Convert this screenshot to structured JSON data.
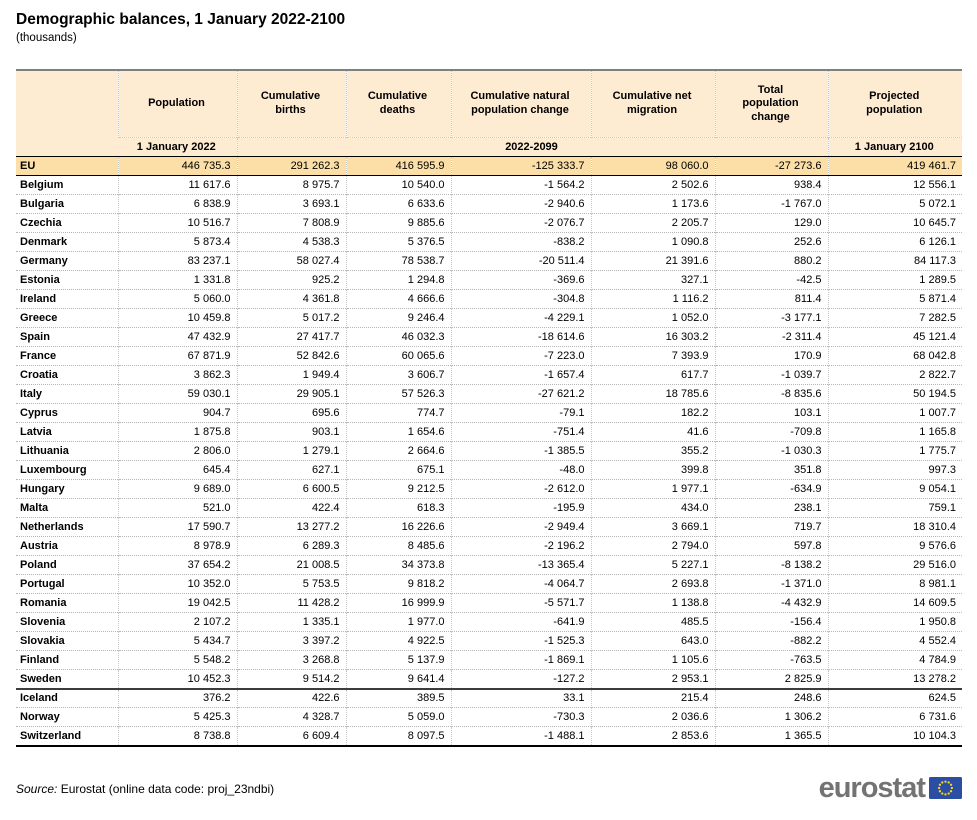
{
  "page": {
    "title": "Demographic balances, 1 January 2022-2100",
    "subtitle": "(thousands)"
  },
  "chart_data": {
    "type": "table",
    "title": "Demographic balances, 1 January 2022-2100",
    "unit": "(thousands)",
    "columns": [
      "",
      "Population",
      "Cumulative births",
      "Cumulative deaths",
      "Cumulative natural population change",
      "Cumulative net migration",
      "Total population change",
      "Projected population"
    ],
    "period_labels": {
      "population": "1 January 2022",
      "middle": "2022-2099",
      "projected": "1 January 2100"
    },
    "rows": [
      {
        "name": "EU",
        "group": "eu",
        "values": [
          "446 735.3",
          "291 262.3",
          "416 595.9",
          "-125 333.7",
          "98 060.0",
          "-27 273.6",
          "419 461.7"
        ]
      },
      {
        "name": "Belgium",
        "group": "member",
        "values": [
          "11 617.6",
          "8 975.7",
          "10 540.0",
          "-1 564.2",
          "2 502.6",
          "938.4",
          "12 556.1"
        ]
      },
      {
        "name": "Bulgaria",
        "group": "member",
        "values": [
          "6 838.9",
          "3 693.1",
          "6 633.6",
          "-2 940.6",
          "1 173.6",
          "-1 767.0",
          "5 072.1"
        ]
      },
      {
        "name": "Czechia",
        "group": "member",
        "values": [
          "10 516.7",
          "7 808.9",
          "9 885.6",
          "-2 076.7",
          "2 205.7",
          "129.0",
          "10 645.7"
        ]
      },
      {
        "name": "Denmark",
        "group": "member",
        "values": [
          "5 873.4",
          "4 538.3",
          "5 376.5",
          "-838.2",
          "1 090.8",
          "252.6",
          "6 126.1"
        ]
      },
      {
        "name": "Germany",
        "group": "member",
        "values": [
          "83 237.1",
          "58 027.4",
          "78 538.7",
          "-20 511.4",
          "21 391.6",
          "880.2",
          "84 117.3"
        ]
      },
      {
        "name": "Estonia",
        "group": "member",
        "values": [
          "1 331.8",
          "925.2",
          "1 294.8",
          "-369.6",
          "327.1",
          "-42.5",
          "1 289.5"
        ]
      },
      {
        "name": "Ireland",
        "group": "member",
        "values": [
          "5 060.0",
          "4 361.8",
          "4 666.6",
          "-304.8",
          "1 116.2",
          "811.4",
          "5 871.4"
        ]
      },
      {
        "name": "Greece",
        "group": "member",
        "values": [
          "10 459.8",
          "5 017.2",
          "9 246.4",
          "-4 229.1",
          "1 052.0",
          "-3 177.1",
          "7 282.5"
        ]
      },
      {
        "name": "Spain",
        "group": "member",
        "values": [
          "47 432.9",
          "27 417.7",
          "46 032.3",
          "-18 614.6",
          "16 303.2",
          "-2 311.4",
          "45 121.4"
        ]
      },
      {
        "name": "France",
        "group": "member",
        "values": [
          "67 871.9",
          "52 842.6",
          "60 065.6",
          "-7 223.0",
          "7 393.9",
          "170.9",
          "68 042.8"
        ]
      },
      {
        "name": "Croatia",
        "group": "member",
        "values": [
          "3 862.3",
          "1 949.4",
          "3 606.7",
          "-1 657.4",
          "617.7",
          "-1 039.7",
          "2 822.7"
        ]
      },
      {
        "name": "Italy",
        "group": "member",
        "values": [
          "59 030.1",
          "29 905.1",
          "57 526.3",
          "-27 621.2",
          "18 785.6",
          "-8 835.6",
          "50 194.5"
        ]
      },
      {
        "name": "Cyprus",
        "group": "member",
        "values": [
          "904.7",
          "695.6",
          "774.7",
          "-79.1",
          "182.2",
          "103.1",
          "1 007.7"
        ]
      },
      {
        "name": "Latvia",
        "group": "member",
        "values": [
          "1 875.8",
          "903.1",
          "1 654.6",
          "-751.4",
          "41.6",
          "-709.8",
          "1 165.8"
        ]
      },
      {
        "name": "Lithuania",
        "group": "member",
        "values": [
          "2 806.0",
          "1 279.1",
          "2 664.6",
          "-1 385.5",
          "355.2",
          "-1 030.3",
          "1 775.7"
        ]
      },
      {
        "name": "Luxembourg",
        "group": "member",
        "values": [
          "645.4",
          "627.1",
          "675.1",
          "-48.0",
          "399.8",
          "351.8",
          "997.3"
        ]
      },
      {
        "name": "Hungary",
        "group": "member",
        "values": [
          "9 689.0",
          "6 600.5",
          "9 212.5",
          "-2 612.0",
          "1 977.1",
          "-634.9",
          "9 054.1"
        ]
      },
      {
        "name": "Malta",
        "group": "member",
        "values": [
          "521.0",
          "422.4",
          "618.3",
          "-195.9",
          "434.0",
          "238.1",
          "759.1"
        ]
      },
      {
        "name": "Netherlands",
        "group": "member",
        "values": [
          "17 590.7",
          "13 277.2",
          "16 226.6",
          "-2 949.4",
          "3 669.1",
          "719.7",
          "18 310.4"
        ]
      },
      {
        "name": "Austria",
        "group": "member",
        "values": [
          "8 978.9",
          "6 289.3",
          "8 485.6",
          "-2 196.2",
          "2 794.0",
          "597.8",
          "9 576.6"
        ]
      },
      {
        "name": "Poland",
        "group": "member",
        "values": [
          "37 654.2",
          "21 008.5",
          "34 373.8",
          "-13 365.4",
          "5 227.1",
          "-8 138.2",
          "29 516.0"
        ]
      },
      {
        "name": "Portugal",
        "group": "member",
        "values": [
          "10 352.0",
          "5 753.5",
          "9 818.2",
          "-4 064.7",
          "2 693.8",
          "-1 371.0",
          "8 981.1"
        ]
      },
      {
        "name": "Romania",
        "group": "member",
        "values": [
          "19 042.5",
          "11 428.2",
          "16 999.9",
          "-5 571.7",
          "1 138.8",
          "-4 432.9",
          "14 609.5"
        ]
      },
      {
        "name": "Slovenia",
        "group": "member",
        "values": [
          "2 107.2",
          "1 335.1",
          "1 977.0",
          "-641.9",
          "485.5",
          "-156.4",
          "1 950.8"
        ]
      },
      {
        "name": "Slovakia",
        "group": "member",
        "values": [
          "5 434.7",
          "3 397.2",
          "4 922.5",
          "-1 525.3",
          "643.0",
          "-882.2",
          "4 552.4"
        ]
      },
      {
        "name": "Finland",
        "group": "member",
        "values": [
          "5 548.2",
          "3 268.8",
          "5 137.9",
          "-1 869.1",
          "1 105.6",
          "-763.5",
          "4 784.9"
        ]
      },
      {
        "name": "Sweden",
        "group": "member",
        "values": [
          "10 452.3",
          "9 514.2",
          "9 641.4",
          "-127.2",
          "2 953.1",
          "2 825.9",
          "13 278.2"
        ]
      },
      {
        "name": "Iceland",
        "group": "efta",
        "divider_above": true,
        "values": [
          "376.2",
          "422.6",
          "389.5",
          "33.1",
          "215.4",
          "248.6",
          "624.5"
        ]
      },
      {
        "name": "Norway",
        "group": "efta",
        "values": [
          "5 425.3",
          "4 328.7",
          "5 059.0",
          "-730.3",
          "2 036.6",
          "1 306.2",
          "6 731.6"
        ]
      },
      {
        "name": "Switzerland",
        "group": "efta",
        "values": [
          "8 738.8",
          "6 609.4",
          "8 097.5",
          "-1 488.1",
          "2 853.6",
          "1 365.5",
          "10 104.3"
        ]
      }
    ]
  },
  "footer": {
    "source_label": "Source:",
    "source_text": "Eurostat (online data code: proj_23ndbi)",
    "logo_text": "eurostat"
  },
  "colors": {
    "header_bg": "#fdebd2",
    "eu_row_bg": "#fbdfa6",
    "logo_text": "#737373",
    "flag_blue": "#2b4ea2",
    "star_yellow": "#f8d31e"
  }
}
